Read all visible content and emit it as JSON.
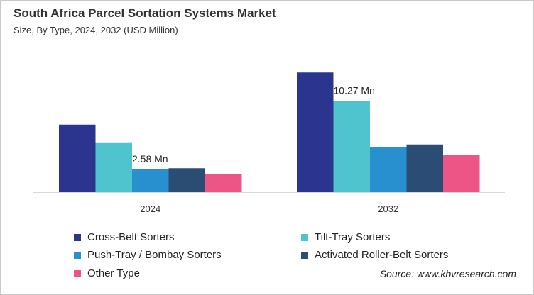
{
  "chart_data": {
    "type": "bar",
    "title": "South Africa Parcel Sortation Systems Market",
    "subtitle": "Size, By Type, 2024, 2032 (USD Million)",
    "categories": [
      "2024",
      "2032"
    ],
    "series": [
      {
        "name": "Cross-Belt Sorters",
        "color": "#2b3590",
        "values": [
          7.62,
          13.5
        ]
      },
      {
        "name": "Tilt-Tray Sorters",
        "color": "#4fc4cf",
        "values": [
          5.62,
          10.27
        ]
      },
      {
        "name": "Push-Tray / Bombay Sorters",
        "color": "#2990d0",
        "values": [
          2.58,
          5.04
        ]
      },
      {
        "name": "Activated Roller-Belt Sorters",
        "color": "#2b4d74",
        "values": [
          2.7,
          5.38
        ]
      },
      {
        "name": "Other Type",
        "color": "#ee5587",
        "values": [
          2.02,
          4.16
        ]
      }
    ],
    "data_labels": [
      {
        "series": 2,
        "category": 0,
        "text": "2.58 Mn"
      },
      {
        "series": 1,
        "category": 1,
        "text": "10.27 Mn"
      }
    ],
    "ylim": [
      0,
      14
    ],
    "grid": false,
    "legend_position": "bottom"
  },
  "source": "Source: www.kbvresearch.com"
}
